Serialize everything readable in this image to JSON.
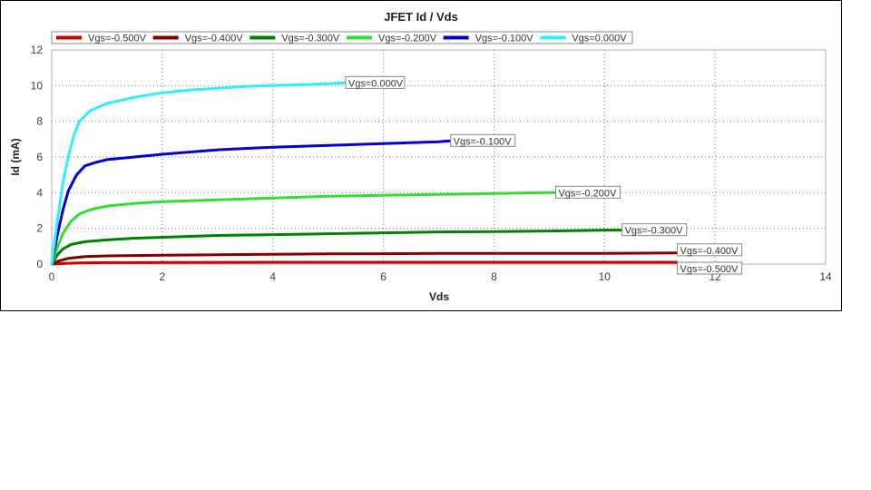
{
  "chart_data": {
    "type": "line",
    "title": "JFET Id / Vds",
    "xlabel": "Vds",
    "ylabel": "Id (mA)",
    "xlim": [
      0,
      14
    ],
    "ylim": [
      0,
      12
    ],
    "xticks": [
      0,
      2,
      4,
      6,
      8,
      10,
      12,
      14
    ],
    "yticks": [
      0,
      2,
      4,
      6,
      8,
      10,
      12
    ],
    "grid": true,
    "legend_position": "top",
    "series": [
      {
        "name": "Vgs=-0.500V",
        "color": "#cc0000",
        "end_label": "Vgs=-0.500V",
        "x": [
          0,
          0.2,
          0.5,
          1,
          2,
          4,
          6,
          8,
          10,
          11.3
        ],
        "y": [
          0,
          0.03,
          0.06,
          0.08,
          0.09,
          0.1,
          0.1,
          0.1,
          0.1,
          0.1
        ]
      },
      {
        "name": "Vgs=-0.400V",
        "color": "#800000",
        "end_label": "Vgs=-0.400V",
        "x": [
          0,
          0.1,
          0.3,
          0.6,
          1,
          2,
          3,
          4,
          5,
          6,
          7,
          8,
          9,
          10,
          11.3
        ],
        "y": [
          0,
          0.15,
          0.32,
          0.42,
          0.46,
          0.5,
          0.52,
          0.55,
          0.57,
          0.58,
          0.6,
          0.6,
          0.6,
          0.6,
          0.62
        ]
      },
      {
        "name": "Vgs=-0.300V",
        "color": "#008000",
        "end_label": "Vgs=-0.300V",
        "x": [
          0,
          0.1,
          0.2,
          0.35,
          0.6,
          1,
          1.5,
          2,
          3,
          4,
          5,
          6,
          7,
          8,
          9,
          10,
          10.3
        ],
        "y": [
          0,
          0.5,
          0.85,
          1.1,
          1.25,
          1.35,
          1.45,
          1.5,
          1.6,
          1.65,
          1.7,
          1.75,
          1.8,
          1.82,
          1.85,
          1.9,
          1.9
        ]
      },
      {
        "name": "Vgs=-0.200V",
        "color": "#33dd33",
        "end_label": "Vgs=-0.200V",
        "x": [
          0,
          0.1,
          0.2,
          0.35,
          0.5,
          0.7,
          1,
          1.5,
          2,
          3,
          4,
          5,
          6,
          7,
          8,
          9,
          9.1
        ],
        "y": [
          0,
          0.9,
          1.7,
          2.4,
          2.8,
          3.05,
          3.25,
          3.4,
          3.5,
          3.6,
          3.7,
          3.8,
          3.85,
          3.9,
          3.95,
          4.0,
          4.0
        ]
      },
      {
        "name": "Vgs=-0.100V",
        "color": "#0000cc",
        "end_label": "Vgs=-0.100V",
        "x": [
          0,
          0.1,
          0.2,
          0.3,
          0.45,
          0.6,
          0.8,
          1,
          1.5,
          2,
          3,
          4,
          5,
          6,
          7,
          7.2
        ],
        "y": [
          0,
          1.6,
          3.0,
          4.1,
          5.0,
          5.5,
          5.7,
          5.85,
          6.0,
          6.15,
          6.4,
          6.55,
          6.65,
          6.75,
          6.85,
          6.9
        ]
      },
      {
        "name": "Vgs=0.000V",
        "color": "#33eeff",
        "end_label": "Vgs=0.000V",
        "x": [
          0,
          0.05,
          0.1,
          0.2,
          0.3,
          0.4,
          0.5,
          0.7,
          1,
          1.5,
          2,
          2.5,
          3,
          3.5,
          4,
          4.5,
          5,
          5.3
        ],
        "y": [
          0,
          1.2,
          2.4,
          4.5,
          6.0,
          7.2,
          8.0,
          8.6,
          9.0,
          9.35,
          9.6,
          9.75,
          9.85,
          9.95,
          10.0,
          10.05,
          10.1,
          10.15
        ]
      }
    ]
  }
}
